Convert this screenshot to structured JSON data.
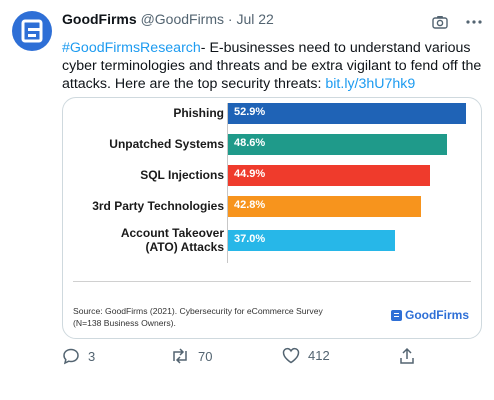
{
  "tweet": {
    "author_name": "GoodFirms",
    "author_handle": "@GoodFirms",
    "separator": "·",
    "date": "Jul 22",
    "hashtag": "#GoodFirmsResearch",
    "text_after_hashtag": "- E-businesses need to understand various cyber terminologies and threats and be extra vigilant to fend off the attacks. Here are the top security threats: ",
    "link": "bit.ly/3hU7hk9"
  },
  "card": {
    "source_line1": "Source: GoodFirms (2021). Cybersecurity for eCommerce Survey",
    "source_line2": "(N=138 Business Owners).",
    "brand": "GoodFirms"
  },
  "chart_data": {
    "type": "bar",
    "orientation": "horizontal",
    "categories": [
      "Phishing",
      "Unpatched Systems",
      "SQL Injections",
      "3rd Party Technologies",
      "Account Takeover (ATO) Attacks"
    ],
    "category_lines": [
      [
        "Phishing"
      ],
      [
        "Unpatched Systems"
      ],
      [
        "SQL Injections"
      ],
      [
        "3rd Party Technologies"
      ],
      [
        "Account Takeover",
        "(ATO) Attacks"
      ]
    ],
    "values": [
      52.9,
      48.6,
      44.9,
      42.8,
      37.0
    ],
    "value_labels": [
      "52.9%",
      "48.6%",
      "44.9%",
      "42.8%",
      "37.0%"
    ],
    "colors": [
      "#1f63b6",
      "#1f9a8a",
      "#ef3b2c",
      "#f7941d",
      "#27b7e8"
    ],
    "xlim": [
      0,
      100
    ],
    "title": "",
    "xlabel": "",
    "ylabel": ""
  },
  "actions": {
    "replies": "3",
    "retweets": "70",
    "likes": "412"
  },
  "icons": [
    "avatar-logo",
    "camera-icon",
    "more-icon",
    "reply-icon",
    "retweet-icon",
    "like-icon",
    "share-icon"
  ]
}
